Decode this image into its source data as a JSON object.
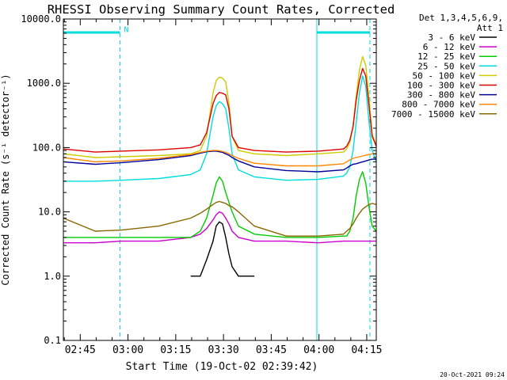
{
  "chart_data": {
    "type": "line",
    "title": "RHESSI Observing Summary Count Rates, Corrected",
    "xlabel": "Start Time (19-Oct-02 02:39:42)",
    "ylabel": "Corrected Count Rate (s⁻¹ detector⁻¹)",
    "yscale": "log",
    "ylim": [
      0.1,
      10000
    ],
    "xlim": [
      "02:39:42",
      "04:18:00"
    ],
    "x_ticks": [
      "02:45",
      "03:00",
      "03:15",
      "03:30",
      "03:45",
      "04:00",
      "04:15"
    ],
    "y_ticks": [
      "0.1",
      "1.0",
      "10.0",
      "100.0",
      "1000.0",
      "10000.0"
    ],
    "legend_header": [
      "Det 1,3,4,5,6,9,",
      "Att 1"
    ],
    "legend_position": "right",
    "timestamp": "20-Oct-2021 09:24",
    "annotations": [
      {
        "text": "N",
        "x": "02:57:30",
        "y": 7000
      }
    ],
    "time_markers": {
      "solid": [
        "02:39:42",
        "03:59:20"
      ],
      "dashed": [
        "02:57:30",
        "04:16:00"
      ],
      "top_bars": [
        [
          "02:39:42",
          "02:57:30"
        ],
        [
          "03:59:20",
          "04:16:00"
        ]
      ]
    },
    "x_minutes": [
      0,
      10,
      18,
      30,
      40,
      43,
      45,
      47,
      48,
      49,
      50,
      51,
      52,
      53,
      55,
      60,
      70,
      80,
      88,
      89,
      90,
      91,
      92,
      93,
      94,
      95,
      96,
      97,
      98.3
    ],
    "series": [
      {
        "name": "3 - 6 keV",
        "color": "#000000",
        "values": [
          null,
          null,
          null,
          null,
          1.0,
          1.0,
          1.8,
          3.5,
          6.0,
          7.0,
          6.5,
          4.0,
          2.2,
          1.4,
          1.0,
          1.0,
          null,
          null,
          null,
          null,
          null,
          null,
          null,
          null,
          null,
          null,
          null,
          null,
          null
        ]
      },
      {
        "name": "6 - 12 keV",
        "color": "#cc00cc",
        "values": [
          3.3,
          3.3,
          3.5,
          3.5,
          4.0,
          4.5,
          5.5,
          7.5,
          9.0,
          10.0,
          9.5,
          8.0,
          6.5,
          5.0,
          4.0,
          3.5,
          3.5,
          3.3,
          3.5,
          3.5,
          3.5,
          3.5,
          3.5,
          3.5,
          3.5,
          3.5,
          3.5,
          3.5,
          3.5
        ]
      },
      {
        "name": "12 - 25 keV",
        "color": "#00cc00",
        "values": [
          4.0,
          4.0,
          4.0,
          4.0,
          4.0,
          5.0,
          8.0,
          18.0,
          28.0,
          35.0,
          30.0,
          20.0,
          14.0,
          10.0,
          6.0,
          4.5,
          4.0,
          4.0,
          4.2,
          4.2,
          5.0,
          8.0,
          18.0,
          32.0,
          42.0,
          28.0,
          12.0,
          6.0,
          5.0
        ]
      },
      {
        "name": "25 - 50 keV",
        "color": "#00dddd",
        "values": [
          30.0,
          30.0,
          31.0,
          33.0,
          38.0,
          45.0,
          80.0,
          300.0,
          450.0,
          520.0,
          480.0,
          400.0,
          200.0,
          80.0,
          45.0,
          35.0,
          31.0,
          32.0,
          36.0,
          40.0,
          50.0,
          90.0,
          250.0,
          700.0,
          1300.0,
          900.0,
          250.0,
          90.0,
          60.0
        ]
      },
      {
        "name": "50 - 100 keV",
        "color": "#cccc00",
        "values": [
          80.0,
          70.0,
          72.0,
          75.0,
          80.0,
          90.0,
          150.0,
          700.0,
          1100.0,
          1250.0,
          1200.0,
          1050.0,
          500.0,
          150.0,
          90.0,
          80.0,
          75.0,
          80.0,
          85.0,
          95.0,
          120.0,
          220.0,
          650.0,
          1600.0,
          2600.0,
          1900.0,
          600.0,
          160.0,
          110.0
        ]
      },
      {
        "name": "100 - 300 keV",
        "color": "#dd0000",
        "values": [
          95.0,
          85.0,
          88.0,
          92.0,
          100.0,
          110.0,
          170.0,
          480.0,
          640.0,
          720.0,
          700.0,
          660.0,
          400.0,
          150.0,
          100.0,
          90.0,
          85.0,
          88.0,
          95.0,
          105.0,
          130.0,
          210.0,
          550.0,
          1100.0,
          1700.0,
          1300.0,
          450.0,
          150.0,
          105.0
        ]
      },
      {
        "name": "300 - 800 keV",
        "color": "#000099",
        "values": [
          60.0,
          55.0,
          58.0,
          65.0,
          75.0,
          82.0,
          86.0,
          88.0,
          88.0,
          86.0,
          84.0,
          80.0,
          76.0,
          70.0,
          62.0,
          50.0,
          44.0,
          42.0,
          45.0,
          48.0,
          52.0,
          55.0,
          56.0,
          58.0,
          60.0,
          62.0,
          64.0,
          66.0,
          66.0
        ]
      },
      {
        "name": "800 - 7000 keV",
        "color": "#ff8800",
        "values": [
          70.0,
          60.0,
          62.0,
          68.0,
          78.0,
          84.0,
          88.0,
          90.0,
          90.0,
          89.0,
          87.0,
          84.0,
          80.0,
          75.0,
          68.0,
          57.0,
          52.0,
          52.0,
          56.0,
          60.0,
          64.0,
          68.0,
          70.0,
          72.0,
          74.0,
          76.0,
          78.0,
          80.0,
          80.0
        ]
      },
      {
        "name": "7000 - 15000 keV",
        "color": "#886600",
        "values": [
          8.0,
          5.0,
          5.2,
          6.0,
          8.0,
          9.5,
          11.0,
          13.0,
          14.0,
          14.5,
          14.0,
          13.5,
          12.5,
          12.0,
          10.0,
          6.0,
          4.2,
          4.2,
          4.5,
          5.0,
          5.5,
          6.5,
          8.0,
          9.5,
          11.0,
          12.0,
          13.0,
          13.5,
          13.0
        ]
      }
    ],
    "grid": false
  }
}
